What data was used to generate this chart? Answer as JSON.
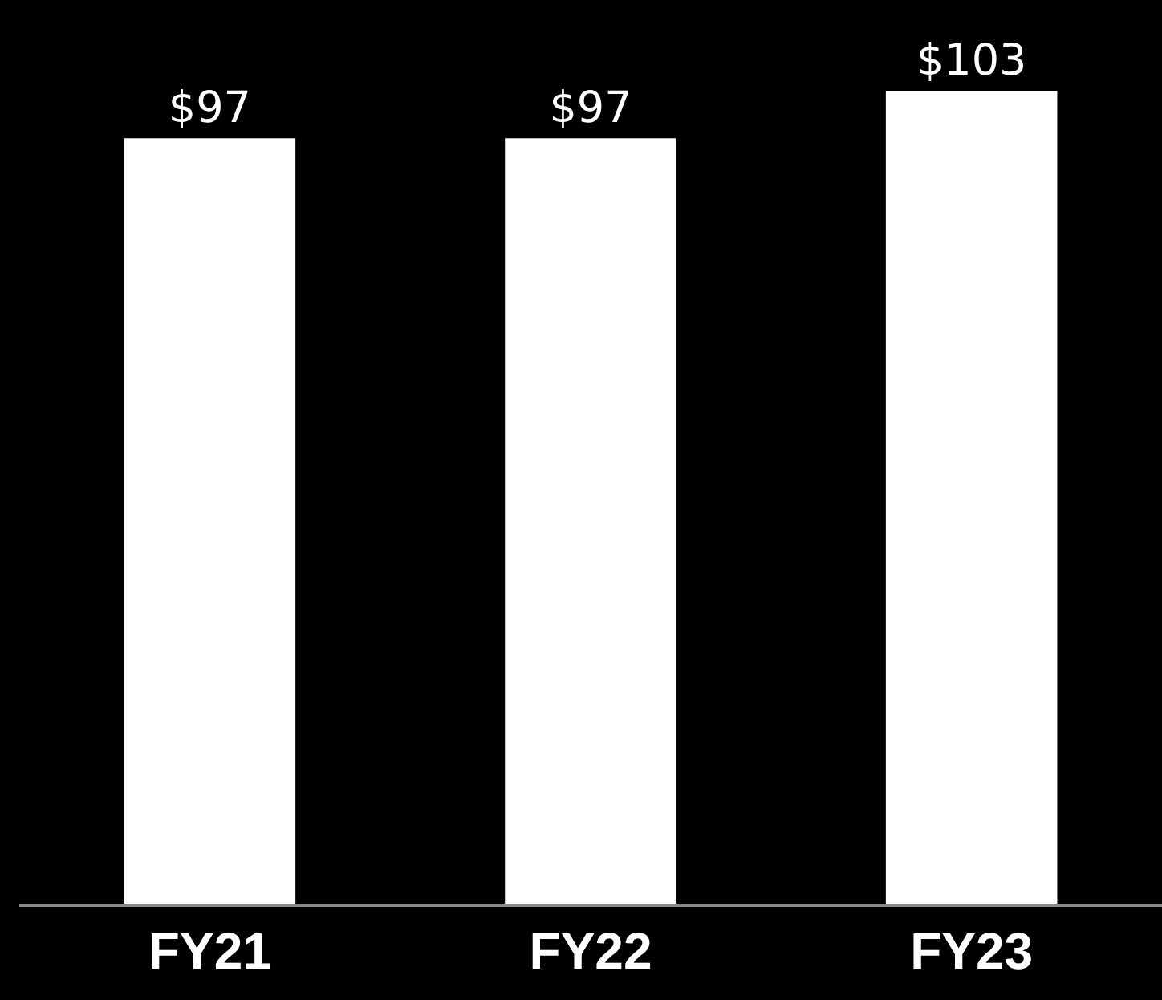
{
  "chart_data": {
    "type": "bar",
    "categories": [
      "FY21",
      "FY22",
      "FY23"
    ],
    "values": [
      97,
      97,
      103
    ],
    "value_labels": [
      "$97",
      "$97",
      "$103"
    ],
    "color": "#ffffff",
    "grid": false,
    "legend": false
  }
}
